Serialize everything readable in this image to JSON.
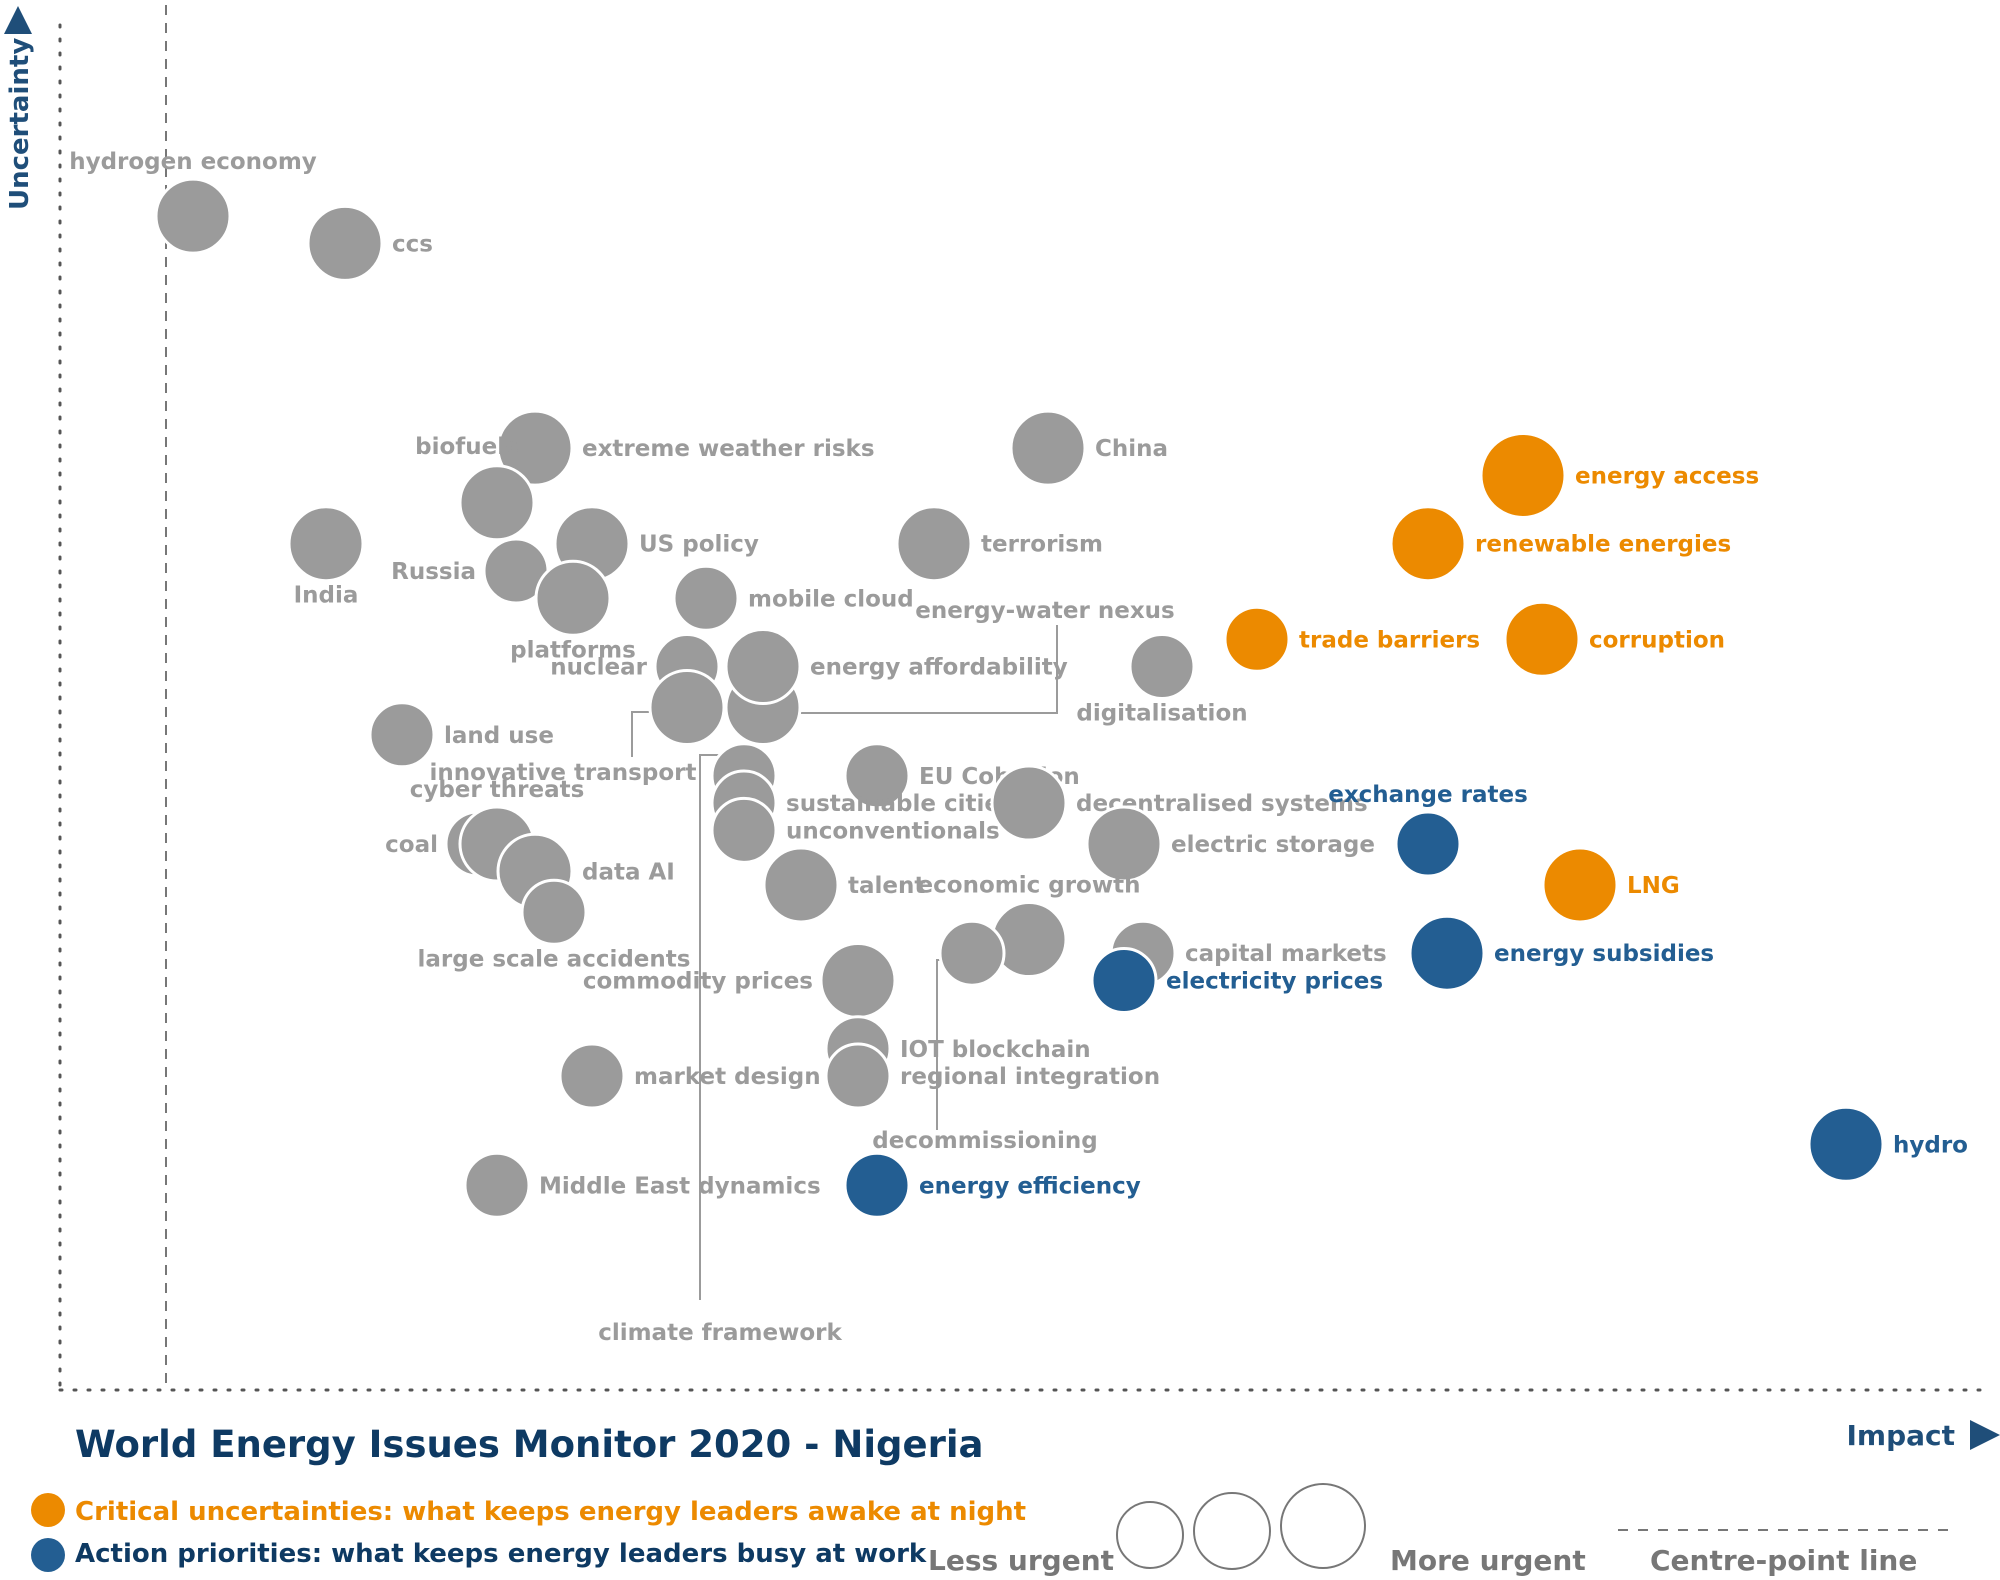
{
  "chart_data": {
    "type": "scatter",
    "title": "World Energy Issues Monitor 2020 - Nigeria",
    "xlabel": "Impact",
    "ylabel": "Uncertainty",
    "grid": false,
    "centre_point_line": "vertical dashed line near left of plot",
    "colors": {
      "critical": "#EC8A00",
      "action": "#235E92",
      "neutral": "#9B9B9B",
      "label_neutral": "#9B9B9B",
      "axis": "#1F4E79",
      "title": "#0E3A63"
    },
    "points": [
      {
        "label": "hydrogen economy",
        "impact": 0.07,
        "uncertainty": 0.86,
        "urgency": 2,
        "group": "neutral"
      },
      {
        "label": "ccs",
        "impact": 0.15,
        "uncertainty": 0.84,
        "urgency": 2,
        "group": "neutral"
      },
      {
        "label": "extreme weather risks",
        "impact": 0.25,
        "uncertainty": 0.69,
        "urgency": 2,
        "group": "neutral"
      },
      {
        "label": "China",
        "impact": 0.52,
        "uncertainty": 0.69,
        "urgency": 2,
        "group": "neutral"
      },
      {
        "label": "energy access",
        "impact": 0.77,
        "uncertainty": 0.67,
        "urgency": 3,
        "group": "critical"
      },
      {
        "label": "biofuels",
        "impact": 0.23,
        "uncertainty": 0.65,
        "urgency": 2,
        "group": "neutral"
      },
      {
        "label": "India",
        "impact": 0.14,
        "uncertainty": 0.62,
        "urgency": 2,
        "group": "neutral"
      },
      {
        "label": "US policy",
        "impact": 0.28,
        "uncertainty": 0.62,
        "urgency": 2,
        "group": "neutral"
      },
      {
        "label": "terrorism",
        "impact": 0.46,
        "uncertainty": 0.62,
        "urgency": 2,
        "group": "neutral"
      },
      {
        "label": "renewable energies",
        "impact": 0.72,
        "uncertainty": 0.62,
        "urgency": 2,
        "group": "critical"
      },
      {
        "label": "Russia",
        "impact": 0.24,
        "uncertainty": 0.6,
        "urgency": 1,
        "group": "neutral"
      },
      {
        "label": "platforms",
        "impact": 0.27,
        "uncertainty": 0.58,
        "urgency": 2,
        "group": "neutral"
      },
      {
        "label": "mobile cloud",
        "impact": 0.34,
        "uncertainty": 0.58,
        "urgency": 1,
        "group": "neutral"
      },
      {
        "label": "energy-water nexus",
        "impact": 0.37,
        "uncertainty": 0.5,
        "urgency": 2,
        "group": "neutral"
      },
      {
        "label": "trade barriers",
        "impact": 0.63,
        "uncertainty": 0.55,
        "urgency": 1,
        "group": "critical"
      },
      {
        "label": "corruption",
        "impact": 0.78,
        "uncertainty": 0.55,
        "urgency": 2,
        "group": "critical"
      },
      {
        "label": "nuclear",
        "impact": 0.33,
        "uncertainty": 0.53,
        "urgency": 1,
        "group": "neutral"
      },
      {
        "label": "energy affordability",
        "impact": 0.37,
        "uncertainty": 0.53,
        "urgency": 2,
        "group": "neutral"
      },
      {
        "label": "digitalisation",
        "impact": 0.58,
        "uncertainty": 0.53,
        "urgency": 1,
        "group": "neutral"
      },
      {
        "label": "innovative transport",
        "impact": 0.33,
        "uncertainty": 0.5,
        "urgency": 2,
        "group": "neutral"
      },
      {
        "label": "land use",
        "impact": 0.18,
        "uncertainty": 0.48,
        "urgency": 1,
        "group": "neutral"
      },
      {
        "label": "EU Cohesion",
        "impact": 0.43,
        "uncertainty": 0.45,
        "urgency": 1,
        "group": "neutral"
      },
      {
        "label": "climate framework",
        "impact": 0.36,
        "uncertainty": 0.45,
        "urgency": 1,
        "group": "neutral"
      },
      {
        "label": "sustainable cities",
        "impact": 0.36,
        "uncertainty": 0.43,
        "urgency": 1,
        "group": "neutral"
      },
      {
        "label": "decentralised systems",
        "impact": 0.51,
        "uncertainty": 0.43,
        "urgency": 2,
        "group": "neutral"
      },
      {
        "label": "unconventionals",
        "impact": 0.36,
        "uncertainty": 0.41,
        "urgency": 1,
        "group": "neutral"
      },
      {
        "label": "exchange rates",
        "impact": 0.72,
        "uncertainty": 0.4,
        "urgency": 1,
        "group": "action"
      },
      {
        "label": "coal",
        "impact": 0.22,
        "uncertainty": 0.4,
        "urgency": 1,
        "group": "neutral"
      },
      {
        "label": "cyber threats",
        "impact": 0.23,
        "uncertainty": 0.4,
        "urgency": 2,
        "group": "neutral"
      },
      {
        "label": "electric storage",
        "impact": 0.56,
        "uncertainty": 0.4,
        "urgency": 2,
        "group": "neutral"
      },
      {
        "label": "data AI",
        "impact": 0.25,
        "uncertainty": 0.38,
        "urgency": 2,
        "group": "neutral"
      },
      {
        "label": "talent",
        "impact": 0.39,
        "uncertainty": 0.37,
        "urgency": 2,
        "group": "neutral"
      },
      {
        "label": "LNG",
        "impact": 0.8,
        "uncertainty": 0.37,
        "urgency": 2,
        "group": "critical"
      },
      {
        "label": "large scale accidents",
        "impact": 0.26,
        "uncertainty": 0.35,
        "urgency": 1,
        "group": "neutral"
      },
      {
        "label": "economic growth",
        "impact": 0.51,
        "uncertainty": 0.33,
        "urgency": 2,
        "group": "neutral"
      },
      {
        "label": "capital markets",
        "impact": 0.57,
        "uncertainty": 0.32,
        "urgency": 1,
        "group": "neutral"
      },
      {
        "label": "energy subsidies",
        "impact": 0.73,
        "uncertainty": 0.32,
        "urgency": 2,
        "group": "action"
      },
      {
        "label": "electricity prices",
        "impact": 0.56,
        "uncertainty": 0.3,
        "urgency": 1,
        "group": "action"
      },
      {
        "label": "commodity prices",
        "impact": 0.42,
        "uncertainty": 0.3,
        "urgency": 2,
        "group": "neutral"
      },
      {
        "label": "decommissioning",
        "impact": 0.48,
        "uncertainty": 0.32,
        "urgency": 1,
        "group": "neutral"
      },
      {
        "label": "IOT blockchain",
        "impact": 0.42,
        "uncertainty": 0.25,
        "urgency": 1,
        "group": "neutral"
      },
      {
        "label": "regional integration",
        "impact": 0.42,
        "uncertainty": 0.23,
        "urgency": 1,
        "group": "neutral"
      },
      {
        "label": "market design",
        "impact": 0.28,
        "uncertainty": 0.23,
        "urgency": 1,
        "group": "neutral"
      },
      {
        "label": "hydro",
        "impact": 0.94,
        "uncertainty": 0.18,
        "urgency": 2,
        "group": "action"
      },
      {
        "label": "Middle East dynamics",
        "impact": 0.23,
        "uncertainty": 0.15,
        "urgency": 1,
        "group": "neutral"
      },
      {
        "label": "energy efficiency",
        "impact": 0.43,
        "uncertainty": 0.15,
        "urgency": 1,
        "group": "action"
      }
    ]
  },
  "legend": {
    "critical": "Critical uncertainties: what keeps energy leaders awake at night",
    "action": "Action priorities: what keeps energy leaders busy at work",
    "less_urgent": "Less urgent",
    "more_urgent": "More urgent",
    "centre_line": "Centre-point  line"
  }
}
